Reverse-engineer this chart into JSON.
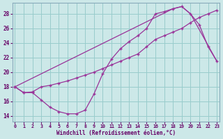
{
  "xlabel": "Windchill (Refroidissement éolien,°C)",
  "bg_color": "#cce8e8",
  "grid_color": "#99cccc",
  "line_color": "#993399",
  "xlim": [
    -0.3,
    23.3
  ],
  "ylim": [
    13.2,
    29.5
  ],
  "xticks": [
    0,
    1,
    2,
    3,
    4,
    5,
    6,
    7,
    8,
    9,
    10,
    11,
    12,
    13,
    14,
    15,
    16,
    17,
    18,
    19,
    20,
    21,
    22,
    23
  ],
  "yticks": [
    14,
    16,
    18,
    20,
    22,
    24,
    26,
    28
  ],
  "curve1_x": [
    0,
    1,
    2,
    3,
    4,
    5,
    6,
    7,
    8,
    9,
    10,
    11,
    12,
    13,
    14,
    15,
    16,
    17,
    18,
    19,
    20,
    21,
    22,
    23
  ],
  "curve1_y": [
    18,
    17.2,
    17.2,
    16.2,
    15.2,
    14.6,
    14.3,
    14.3,
    14.8,
    17.0,
    19.8,
    21.8,
    23.2,
    24.2,
    25.0,
    26.0,
    28.0,
    28.3,
    28.7,
    29.0,
    28.0,
    26.5,
    23.5,
    21.5
  ],
  "curve2_x": [
    0,
    1,
    2,
    3,
    4,
    5,
    6,
    7,
    8,
    9,
    10,
    11,
    12,
    13,
    14,
    15,
    16,
    17,
    18,
    19,
    20,
    21,
    22,
    23
  ],
  "curve2_y": [
    18.0,
    17.2,
    17.3,
    18.0,
    18.2,
    18.5,
    18.8,
    19.2,
    19.6,
    20.0,
    20.5,
    21.0,
    21.5,
    22.0,
    22.5,
    23.5,
    24.5,
    25.0,
    25.5,
    26.0,
    26.8,
    27.5,
    28.0,
    28.5
  ],
  "curve3_x": [
    0,
    18,
    19,
    20,
    23
  ],
  "curve3_y": [
    18.0,
    28.7,
    29.0,
    28.0,
    21.5
  ]
}
